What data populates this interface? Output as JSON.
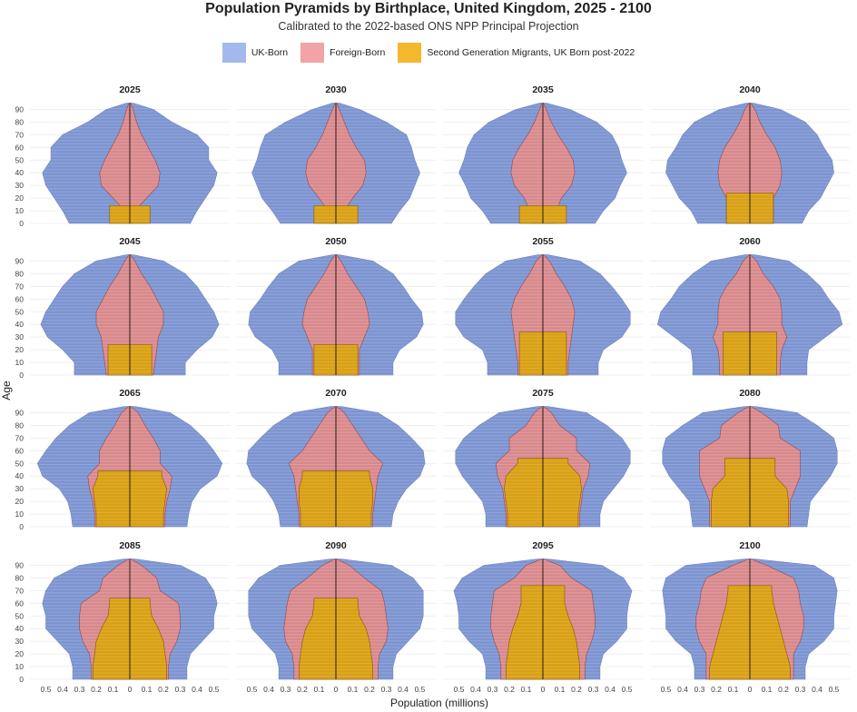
{
  "title": "Population Pyramids by Birthplace, United Kingdom, 2025 - 2100",
  "subtitle": "Calibrated to the 2022-based ONS NPP Principal Projection",
  "legend": [
    {
      "label": "UK-Born",
      "color": "#A3B9EE"
    },
    {
      "label": "Foreign-Born",
      "color": "#F2A3A6"
    },
    {
      "label": "Second Generation Migrants, UK Born post-2022",
      "color": "#F3B82E"
    }
  ],
  "render_colors": {
    "uk_born": "#7E94CE",
    "foreign_born": "#D98C8F",
    "second_gen": "#D8A21E"
  },
  "chart_data": {
    "type": "area",
    "chart_kind": "population pyramid small multiples (mirrored, UK-Born largest, Foreign-Born and Second Generation nested inside)",
    "xlabel": "Population (millions)",
    "ylabel": "Age",
    "xlim": [
      -0.55,
      0.55
    ],
    "ylim": [
      0,
      95
    ],
    "x_ticks": [
      "0.5",
      "0.4",
      "0.3",
      "0.2",
      "0.1",
      "0",
      "0.1",
      "0.2",
      "0.3",
      "0.4",
      "0.5"
    ],
    "x_tick_values": [
      -0.5,
      -0.4,
      -0.3,
      -0.2,
      -0.1,
      0,
      0.1,
      0.2,
      0.3,
      0.4,
      0.5
    ],
    "y_ticks": [
      0,
      10,
      20,
      30,
      40,
      50,
      60,
      70,
      80,
      90
    ],
    "grid": true,
    "legend_position": "top",
    "age_points": [
      0,
      10,
      20,
      30,
      40,
      50,
      60,
      70,
      80,
      90,
      95
    ],
    "panels": [
      {
        "year": "2025",
        "uk_born": [
          0.36,
          0.4,
          0.45,
          0.5,
          0.52,
          0.47,
          0.47,
          0.4,
          0.25,
          0.14,
          0.02
        ],
        "foreign_born": [
          0.02,
          0.03,
          0.1,
          0.17,
          0.18,
          0.15,
          0.11,
          0.07,
          0.04,
          0.02,
          0.005
        ],
        "second_gen": [
          0.12,
          0.12,
          0,
          0,
          0,
          0,
          0,
          0,
          0,
          0,
          0
        ]
      },
      {
        "year": "2030",
        "uk_born": [
          0.33,
          0.38,
          0.44,
          0.47,
          0.5,
          0.47,
          0.45,
          0.42,
          0.3,
          0.14,
          0.02
        ],
        "foreign_born": [
          0.04,
          0.05,
          0.1,
          0.16,
          0.18,
          0.17,
          0.12,
          0.08,
          0.05,
          0.02,
          0.005
        ],
        "second_gen": [
          0.13,
          0.13,
          0,
          0,
          0,
          0,
          0,
          0,
          0,
          0,
          0
        ]
      },
      {
        "year": "2035",
        "uk_born": [
          0.31,
          0.36,
          0.43,
          0.46,
          0.5,
          0.47,
          0.45,
          0.41,
          0.32,
          0.16,
          0.02
        ],
        "foreign_born": [
          0.07,
          0.08,
          0.11,
          0.17,
          0.19,
          0.18,
          0.14,
          0.09,
          0.05,
          0.02,
          0.005
        ],
        "second_gen": [
          0.14,
          0.14,
          0,
          0,
          0,
          0,
          0,
          0,
          0,
          0,
          0
        ]
      },
      {
        "year": "2040",
        "uk_born": [
          0.31,
          0.35,
          0.42,
          0.46,
          0.5,
          0.49,
          0.44,
          0.4,
          0.33,
          0.18,
          0.02
        ],
        "foreign_born": [
          0.14,
          0.14,
          0.14,
          0.18,
          0.19,
          0.18,
          0.15,
          0.1,
          0.06,
          0.03,
          0.005
        ],
        "second_gen": [
          0.14,
          0.14,
          0.14,
          0,
          0,
          0,
          0,
          0,
          0,
          0,
          0
        ]
      },
      {
        "year": "2045",
        "uk_born": [
          0.33,
          0.33,
          0.4,
          0.49,
          0.53,
          0.5,
          0.45,
          0.4,
          0.33,
          0.2,
          0.02
        ],
        "foreign_born": [
          0.14,
          0.15,
          0.16,
          0.17,
          0.2,
          0.2,
          0.16,
          0.12,
          0.07,
          0.03,
          0.005
        ],
        "second_gen": [
          0.13,
          0.13,
          0.13,
          0,
          0,
          0,
          0,
          0,
          0,
          0,
          0
        ]
      },
      {
        "year": "2050",
        "uk_born": [
          0.34,
          0.34,
          0.38,
          0.48,
          0.52,
          0.51,
          0.45,
          0.4,
          0.34,
          0.22,
          0.02
        ],
        "foreign_born": [
          0.14,
          0.14,
          0.14,
          0.17,
          0.2,
          0.19,
          0.17,
          0.12,
          0.07,
          0.03,
          0.005
        ],
        "second_gen": [
          0.13,
          0.13,
          0.13,
          0,
          0,
          0,
          0,
          0,
          0,
          0,
          0
        ]
      },
      {
        "year": "2055",
        "uk_born": [
          0.33,
          0.33,
          0.36,
          0.47,
          0.52,
          0.52,
          0.47,
          0.41,
          0.34,
          0.22,
          0.03
        ],
        "foreign_born": [
          0.15,
          0.15,
          0.16,
          0.17,
          0.18,
          0.19,
          0.17,
          0.13,
          0.08,
          0.04,
          0.005
        ],
        "second_gen": [
          0.14,
          0.14,
          0.14,
          0.14,
          0,
          0,
          0,
          0,
          0,
          0,
          0
        ]
      },
      {
        "year": "2060",
        "uk_born": [
          0.34,
          0.34,
          0.35,
          0.45,
          0.55,
          0.53,
          0.47,
          0.42,
          0.34,
          0.23,
          0.03
        ],
        "foreign_born": [
          0.18,
          0.18,
          0.19,
          0.22,
          0.19,
          0.19,
          0.18,
          0.14,
          0.08,
          0.04,
          0.005
        ],
        "second_gen": [
          0.16,
          0.16,
          0.16,
          0.16,
          0,
          0,
          0,
          0,
          0,
          0,
          0
        ]
      },
      {
        "year": "2065",
        "uk_born": [
          0.34,
          0.35,
          0.37,
          0.42,
          0.52,
          0.55,
          0.5,
          0.44,
          0.36,
          0.24,
          0.03
        ],
        "foreign_born": [
          0.21,
          0.21,
          0.22,
          0.24,
          0.25,
          0.18,
          0.18,
          0.14,
          0.09,
          0.05,
          0.005
        ],
        "second_gen": [
          0.2,
          0.2,
          0.21,
          0.22,
          0.19,
          0,
          0,
          0,
          0,
          0,
          0
        ]
      },
      {
        "year": "2070",
        "uk_born": [
          0.33,
          0.34,
          0.37,
          0.42,
          0.5,
          0.53,
          0.52,
          0.45,
          0.37,
          0.25,
          0.03
        ],
        "foreign_born": [
          0.22,
          0.22,
          0.23,
          0.24,
          0.25,
          0.28,
          0.2,
          0.15,
          0.1,
          0.05,
          0.005
        ],
        "second_gen": [
          0.21,
          0.21,
          0.22,
          0.22,
          0.2,
          0,
          0,
          0,
          0,
          0,
          0
        ]
      },
      {
        "year": "2075",
        "uk_born": [
          0.34,
          0.34,
          0.36,
          0.42,
          0.48,
          0.52,
          0.52,
          0.47,
          0.38,
          0.26,
          0.03
        ],
        "foreign_born": [
          0.22,
          0.22,
          0.23,
          0.24,
          0.27,
          0.28,
          0.2,
          0.2,
          0.1,
          0.05,
          0.005
        ],
        "second_gen": [
          0.21,
          0.21,
          0.22,
          0.23,
          0.22,
          0.15,
          0,
          0,
          0,
          0,
          0
        ]
      },
      {
        "year": "2080",
        "uk_born": [
          0.34,
          0.35,
          0.36,
          0.42,
          0.48,
          0.52,
          0.52,
          0.5,
          0.4,
          0.28,
          0.03
        ],
        "foreign_born": [
          0.24,
          0.24,
          0.24,
          0.27,
          0.3,
          0.3,
          0.3,
          0.18,
          0.17,
          0.07,
          0.005
        ],
        "second_gen": [
          0.23,
          0.23,
          0.23,
          0.22,
          0.15,
          0.15,
          0,
          0,
          0,
          0,
          0
        ]
      },
      {
        "year": "2085",
        "uk_born": [
          0.34,
          0.34,
          0.36,
          0.43,
          0.5,
          0.5,
          0.52,
          0.5,
          0.45,
          0.3,
          0.03
        ],
        "foreign_born": [
          0.23,
          0.23,
          0.24,
          0.28,
          0.3,
          0.3,
          0.29,
          0.18,
          0.16,
          0.07,
          0.005
        ],
        "second_gen": [
          0.22,
          0.22,
          0.21,
          0.2,
          0.17,
          0.13,
          0.12,
          0,
          0,
          0,
          0
        ]
      },
      {
        "year": "2090",
        "uk_born": [
          0.34,
          0.34,
          0.36,
          0.43,
          0.5,
          0.52,
          0.52,
          0.52,
          0.46,
          0.33,
          0.03
        ],
        "foreign_born": [
          0.25,
          0.25,
          0.26,
          0.3,
          0.31,
          0.3,
          0.29,
          0.27,
          0.17,
          0.08,
          0.005
        ],
        "second_gen": [
          0.22,
          0.22,
          0.21,
          0.2,
          0.18,
          0.14,
          0.13,
          0,
          0,
          0,
          0
        ]
      },
      {
        "year": "2095",
        "uk_born": [
          0.34,
          0.34,
          0.36,
          0.44,
          0.5,
          0.5,
          0.51,
          0.53,
          0.48,
          0.35,
          0.03
        ],
        "foreign_born": [
          0.25,
          0.25,
          0.26,
          0.29,
          0.31,
          0.31,
          0.3,
          0.29,
          0.17,
          0.1,
          0.005
        ],
        "second_gen": [
          0.22,
          0.22,
          0.21,
          0.2,
          0.18,
          0.15,
          0.13,
          0.13,
          0,
          0,
          0
        ]
      },
      {
        "year": "2100",
        "uk_born": [
          0.33,
          0.33,
          0.35,
          0.44,
          0.5,
          0.5,
          0.51,
          0.52,
          0.5,
          0.38,
          0.03
        ],
        "foreign_born": [
          0.26,
          0.26,
          0.26,
          0.3,
          0.32,
          0.32,
          0.3,
          0.29,
          0.26,
          0.1,
          0.005
        ],
        "second_gen": [
          0.24,
          0.24,
          0.22,
          0.2,
          0.18,
          0.16,
          0.14,
          0.13,
          0,
          0,
          0
        ]
      }
    ]
  }
}
